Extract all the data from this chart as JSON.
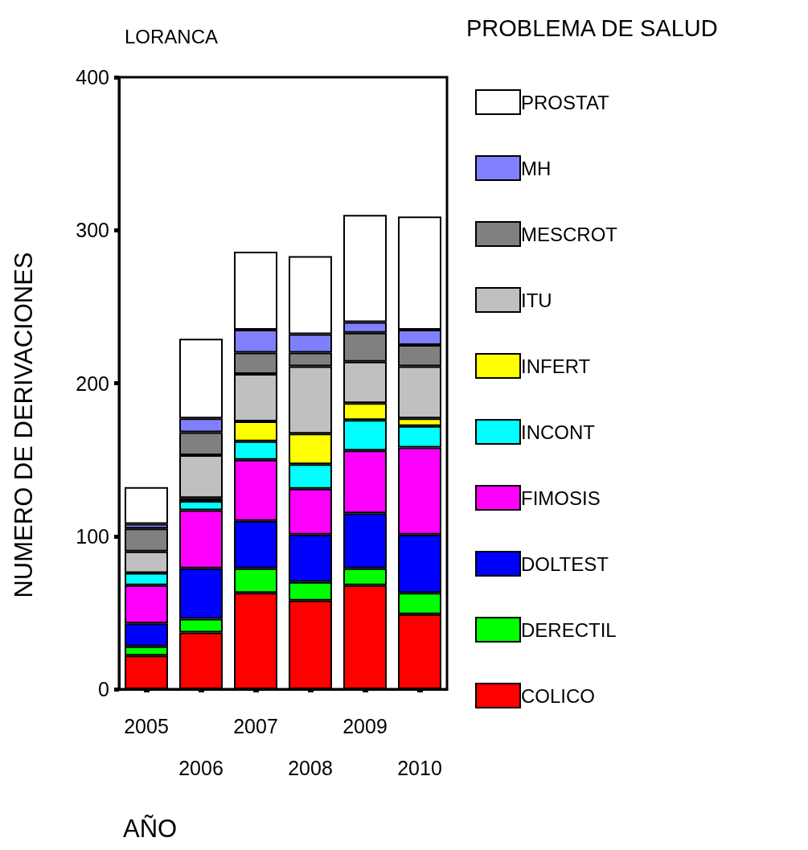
{
  "chart_data": {
    "type": "bar",
    "stacked": true,
    "title": "LORANCA",
    "legend_title": "PROBLEMA DE SALUD",
    "xlabel": "AÑO",
    "ylabel": "NUMERO DE DERIVACIONES",
    "categories": [
      "2005",
      "2006",
      "2007",
      "2008",
      "2009",
      "2010"
    ],
    "series": [
      {
        "name": "COLICO",
        "color": "#ff0000",
        "values": [
          22,
          37,
          63,
          58,
          68,
          49
        ]
      },
      {
        "name": "DERECTIL",
        "color": "#00ff00",
        "values": [
          6,
          9,
          16,
          12,
          11,
          14
        ]
      },
      {
        "name": "DOLTEST",
        "color": "#0000ff",
        "values": [
          15,
          33,
          31,
          31,
          36,
          38
        ]
      },
      {
        "name": "FIMOSIS",
        "color": "#ff00ff",
        "values": [
          25,
          38,
          40,
          30,
          41,
          57
        ]
      },
      {
        "name": "INCONT",
        "color": "#00ffff",
        "values": [
          8,
          6,
          12,
          16,
          20,
          14
        ]
      },
      {
        "name": "INFERT",
        "color": "#ffff00",
        "values": [
          0,
          2,
          13,
          20,
          11,
          5
        ]
      },
      {
        "name": "ITU",
        "color": "#c0c0c0",
        "values": [
          14,
          28,
          31,
          44,
          27,
          34
        ]
      },
      {
        "name": "MESCROT",
        "color": "#808080",
        "values": [
          15,
          15,
          14,
          9,
          19,
          14
        ]
      },
      {
        "name": "MH",
        "color": "#8080ff",
        "values": [
          3,
          9,
          15,
          12,
          7,
          10
        ]
      },
      {
        "name": "PROSTAT",
        "color": "#ffffff",
        "values": [
          24,
          52,
          51,
          51,
          70,
          74
        ]
      }
    ],
    "ylim": [
      0,
      400
    ],
    "yticks": [
      0,
      100,
      200,
      300,
      400
    ],
    "grid": false,
    "legend": "right"
  }
}
